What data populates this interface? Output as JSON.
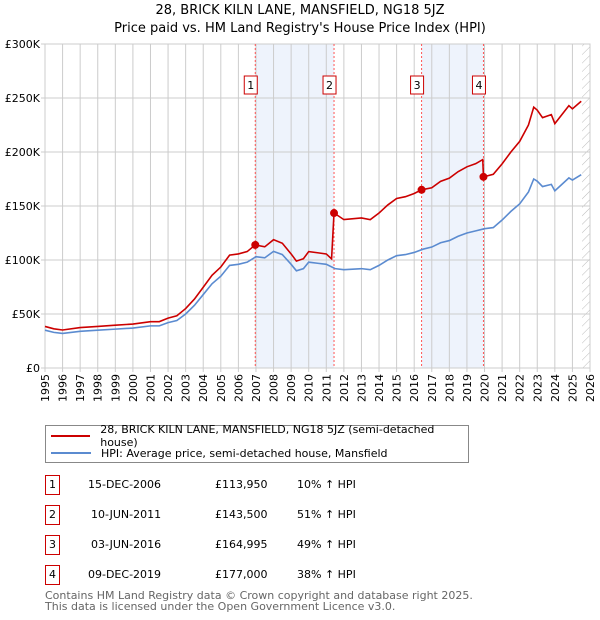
{
  "chart_data": {
    "type": "line",
    "title": "28, BRICK KILN LANE, MANSFIELD, NG18 5JZ",
    "subtitle": "Price paid vs. HM Land Registry's House Price Index (HPI)",
    "xlim": [
      1995,
      2026
    ],
    "ylim": [
      0,
      300000
    ],
    "yticks": [
      {
        "v": 0,
        "label": "£0"
      },
      {
        "v": 50000,
        "label": "£50K"
      },
      {
        "v": 100000,
        "label": "£100K"
      },
      {
        "v": 150000,
        "label": "£150K"
      },
      {
        "v": 200000,
        "label": "£200K"
      },
      {
        "v": 250000,
        "label": "£250K"
      },
      {
        "v": 300000,
        "label": "£300K"
      }
    ],
    "xticks": [
      "1995",
      "1996",
      "1997",
      "1998",
      "1999",
      "2000",
      "2001",
      "2002",
      "2003",
      "2004",
      "2005",
      "2006",
      "2007",
      "2008",
      "2009",
      "2010",
      "2011",
      "2012",
      "2013",
      "2014",
      "2015",
      "2016",
      "2017",
      "2018",
      "2019",
      "2020",
      "2021",
      "2022",
      "2023",
      "2024",
      "2025",
      "2026"
    ],
    "shaded": [
      [
        2006.96,
        2011.44
      ],
      [
        2016.42,
        2019.94
      ]
    ],
    "hatched_from": 2025.55,
    "series": [
      {
        "name": "28, BRICK KILN LANE, MANSFIELD, NG18 5JZ (semi-detached house)",
        "color": "#cc0000",
        "points": [
          [
            1995,
            38.5
          ],
          [
            1995.5,
            36.3
          ],
          [
            1996,
            35.2
          ],
          [
            1997,
            37.4
          ],
          [
            1998,
            38.5
          ],
          [
            1999,
            39.6
          ],
          [
            2000,
            40.7
          ],
          [
            2001,
            42.9
          ],
          [
            2001.5,
            42.9
          ],
          [
            2002,
            46.2
          ],
          [
            2002.5,
            48.4
          ],
          [
            2003,
            55
          ],
          [
            2003.5,
            63.8
          ],
          [
            2004,
            74.8
          ],
          [
            2004.5,
            85.8
          ],
          [
            2005,
            93.5
          ],
          [
            2005.5,
            104.5
          ],
          [
            2006,
            105.6
          ],
          [
            2006.5,
            107.8
          ],
          [
            2006.96,
            113.95
          ],
          [
            2007.5,
            112.2
          ],
          [
            2008,
            118.8
          ],
          [
            2008.5,
            115.5
          ],
          [
            2009,
            105.6
          ],
          [
            2009.3,
            99
          ],
          [
            2009.7,
            101.2
          ],
          [
            2010,
            107.8
          ],
          [
            2010.5,
            106.7
          ],
          [
            2011,
            105.6
          ],
          [
            2011.3,
            101
          ],
          [
            2011.44,
            143.5
          ],
          [
            2012,
            137.4
          ],
          [
            2013,
            138.9
          ],
          [
            2013.5,
            137.4
          ],
          [
            2014,
            143.5
          ],
          [
            2014.5,
            151
          ],
          [
            2015,
            157
          ],
          [
            2015.5,
            158.6
          ],
          [
            2016,
            161.6
          ],
          [
            2016.42,
            164.995
          ],
          [
            2017,
            166.9
          ],
          [
            2017.5,
            172.8
          ],
          [
            2018,
            175.8
          ],
          [
            2018.5,
            181.8
          ],
          [
            2019,
            186.3
          ],
          [
            2019.5,
            189.2
          ],
          [
            2019.9,
            193
          ],
          [
            2019.94,
            177
          ],
          [
            2020.5,
            179.4
          ],
          [
            2021,
            189
          ],
          [
            2021.5,
            200
          ],
          [
            2022,
            209.8
          ],
          [
            2022.5,
            225
          ],
          [
            2022.8,
            241.5
          ],
          [
            2023,
            238.7
          ],
          [
            2023.3,
            231.8
          ],
          [
            2023.8,
            234.6
          ],
          [
            2024,
            226.3
          ],
          [
            2024.4,
            234.6
          ],
          [
            2024.8,
            242.9
          ],
          [
            2025,
            240
          ],
          [
            2025.5,
            247
          ]
        ]
      },
      {
        "name": "HPI: Average price, semi-detached house, Mansfield",
        "color": "#5b8bd0",
        "points": [
          [
            1995,
            35
          ],
          [
            1995.5,
            33
          ],
          [
            1996,
            32
          ],
          [
            1997,
            34
          ],
          [
            1998,
            35
          ],
          [
            1999,
            36
          ],
          [
            2000,
            37
          ],
          [
            2001,
            39
          ],
          [
            2001.5,
            39
          ],
          [
            2002,
            42
          ],
          [
            2002.5,
            44
          ],
          [
            2003,
            50
          ],
          [
            2003.5,
            58
          ],
          [
            2004,
            68
          ],
          [
            2004.5,
            78
          ],
          [
            2005,
            85
          ],
          [
            2005.5,
            95
          ],
          [
            2006,
            96
          ],
          [
            2006.5,
            98
          ],
          [
            2007,
            103
          ],
          [
            2007.5,
            102
          ],
          [
            2008,
            108
          ],
          [
            2008.5,
            105
          ],
          [
            2009,
            96
          ],
          [
            2009.3,
            90
          ],
          [
            2009.7,
            92
          ],
          [
            2010,
            98
          ],
          [
            2010.5,
            97
          ],
          [
            2011,
            96
          ],
          [
            2011.5,
            92
          ],
          [
            2012,
            91
          ],
          [
            2013,
            92
          ],
          [
            2013.5,
            91
          ],
          [
            2014,
            95
          ],
          [
            2014.5,
            100
          ],
          [
            2015,
            104
          ],
          [
            2015.5,
            105
          ],
          [
            2016,
            107
          ],
          [
            2016.5,
            110
          ],
          [
            2017,
            112
          ],
          [
            2017.5,
            116
          ],
          [
            2018,
            118
          ],
          [
            2018.5,
            122
          ],
          [
            2019,
            125
          ],
          [
            2019.5,
            127
          ],
          [
            2020,
            129
          ],
          [
            2020.5,
            130
          ],
          [
            2021,
            137
          ],
          [
            2021.5,
            145
          ],
          [
            2022,
            152
          ],
          [
            2022.5,
            163
          ],
          [
            2022.8,
            175
          ],
          [
            2023,
            173
          ],
          [
            2023.3,
            168
          ],
          [
            2023.8,
            170
          ],
          [
            2024,
            164
          ],
          [
            2024.4,
            170
          ],
          [
            2024.8,
            176
          ],
          [
            2025,
            174
          ],
          [
            2025.5,
            179
          ]
        ]
      }
    ],
    "sales": [
      {
        "n": "1",
        "x": 2006.96,
        "y": 113.95,
        "date": "15-DEC-2006",
        "price": "£113,950",
        "hpi": "10% ↑ HPI"
      },
      {
        "n": "2",
        "x": 2011.44,
        "y": 143.5,
        "date": "10-JUN-2011",
        "price": "£143,500",
        "hpi": "51% ↑ HPI"
      },
      {
        "n": "3",
        "x": 2016.42,
        "y": 164.995,
        "date": "03-JUN-2016",
        "price": "£164,995",
        "hpi": "49% ↑ HPI"
      },
      {
        "n": "4",
        "x": 2019.94,
        "y": 177,
        "date": "09-DEC-2019",
        "price": "£177,000",
        "hpi": "38% ↑ HPI"
      }
    ]
  },
  "footer": {
    "line1": "Contains HM Land Registry data © Crown copyright and database right 2025.",
    "line2": "This data is licensed under the Open Government Licence v3.0."
  }
}
